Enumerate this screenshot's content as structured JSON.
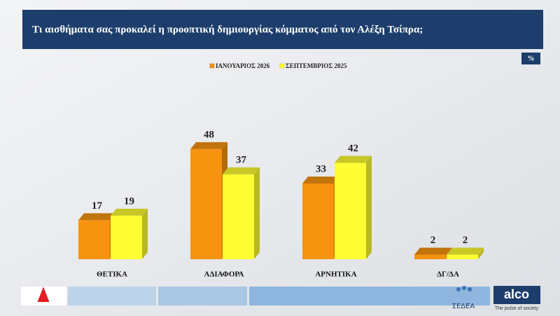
{
  "chart_data": {
    "type": "bar3d",
    "title": "Τι αισθήματα σας προκαλεί η προοπτική δημιουργίας κόμματος από τον Αλέξη Τσίπρα;",
    "unit": "%",
    "categories": [
      "ΘΕΤΙΚΑ",
      "ΑΔΙΑΦΟΡΑ",
      "ΑΡΝΗΤΙΚΑ",
      "ΔΓ/ΔΑ"
    ],
    "series": [
      {
        "name": "ΙΑΝΟΥΑΡΙΟΣ 2026",
        "color": "#f7940f",
        "values": [
          17,
          48,
          33,
          2
        ]
      },
      {
        "name": "ΣΕΠΤΕΜΒΡΙΟΣ 2025",
        "color": "#ffff33",
        "values": [
          19,
          37,
          42,
          2
        ]
      }
    ],
    "ylim": [
      0,
      55
    ],
    "legend": "top"
  },
  "branding": {
    "sedea": "ΣΕΔΕΑ",
    "alco": "alco",
    "tagline": "The pulse of society"
  }
}
